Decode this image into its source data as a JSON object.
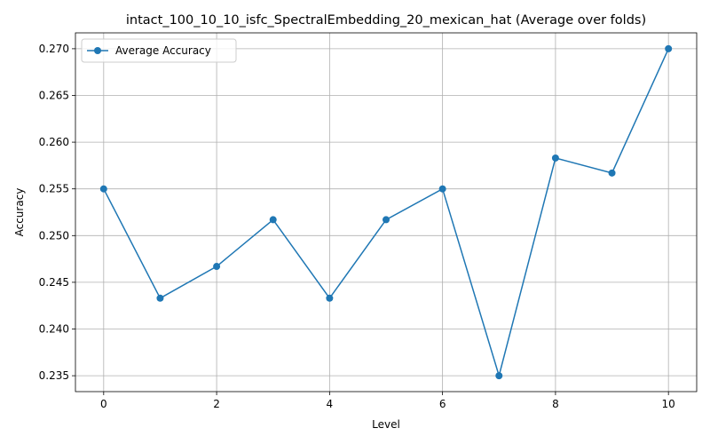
{
  "chart_data": {
    "type": "line",
    "title": "intact_100_10_10_isfc_SpectralEmbedding_20_mexican_hat (Average over folds)",
    "xlabel": "Level",
    "ylabel": "Accuracy",
    "xlim": [
      -0.5,
      10.5
    ],
    "ylim": [
      0.2333,
      0.2717
    ],
    "xticks": [
      0,
      2,
      4,
      6,
      8,
      10
    ],
    "yticks": [
      0.235,
      0.24,
      0.245,
      0.25,
      0.255,
      0.26,
      0.265,
      0.27
    ],
    "ytick_labels": [
      "0.235",
      "0.240",
      "0.245",
      "0.250",
      "0.255",
      "0.260",
      "0.265",
      "0.270"
    ],
    "grid": true,
    "legend_position": "top-left",
    "series": [
      {
        "name": "Average Accuracy",
        "color": "#1f77b4",
        "marker": "circle",
        "x": [
          0,
          1,
          2,
          3,
          4,
          5,
          6,
          7,
          8,
          9,
          10
        ],
        "values": [
          0.255,
          0.2433,
          0.2467,
          0.2517,
          0.2433,
          0.2517,
          0.255,
          0.235,
          0.2583,
          0.2567,
          0.27
        ]
      }
    ]
  }
}
